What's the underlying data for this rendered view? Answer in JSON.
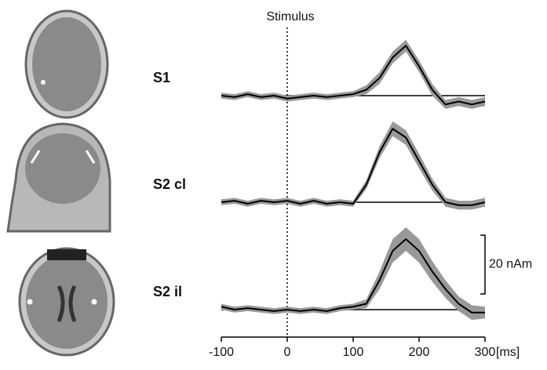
{
  "chart_data": [
    {
      "type": "line",
      "title": "S1",
      "annotation": "Stimulus",
      "annotation_x": 0,
      "x": [
        -100,
        -80,
        -60,
        -40,
        -20,
        0,
        20,
        40,
        60,
        80,
        100,
        120,
        140,
        160,
        180,
        200,
        220,
        240,
        260,
        280,
        300
      ],
      "series": [
        {
          "name": "S1",
          "color": "#000000",
          "band_color": "#999999",
          "values": [
            0,
            -0.5,
            0.5,
            -0.5,
            0,
            -1,
            -0.5,
            0,
            -0.5,
            0,
            0.5,
            2,
            6,
            13,
            17,
            10,
            2,
            -3,
            -2,
            -3,
            -2
          ],
          "error": [
            1,
            1,
            1,
            1,
            1,
            1,
            1,
            1,
            1,
            1,
            1,
            1.5,
            2,
            2,
            2,
            2,
            2,
            1.5,
            1.5,
            1.5,
            1.5
          ]
        }
      ],
      "xlim": [
        -100,
        300
      ],
      "ylim": [
        -6,
        28
      ]
    },
    {
      "type": "line",
      "title": "S2 cl",
      "x": [
        -100,
        -80,
        -60,
        -40,
        -20,
        0,
        20,
        40,
        60,
        80,
        100,
        120,
        140,
        160,
        180,
        200,
        220,
        240,
        260,
        280,
        300
      ],
      "series": [
        {
          "name": "S2 cl",
          "color": "#000000",
          "band_color": "#999999",
          "values": [
            0,
            0.5,
            -0.5,
            0.5,
            0,
            0.5,
            -0.5,
            0.5,
            -0.5,
            0,
            -0.5,
            6,
            17,
            25,
            22,
            14,
            6,
            0,
            -1,
            -1,
            0
          ],
          "error": [
            1,
            1,
            1,
            1,
            1,
            1,
            1,
            1,
            1,
            1,
            1,
            1.5,
            2,
            2.5,
            2.5,
            2.5,
            2,
            1.5,
            1.5,
            1.5,
            1.5
          ]
        }
      ],
      "xlim": [
        -100,
        300
      ],
      "ylim": [
        -6,
        28
      ]
    },
    {
      "type": "line",
      "title": "S2 il",
      "x": [
        -100,
        -80,
        -60,
        -40,
        -20,
        0,
        20,
        40,
        60,
        80,
        100,
        120,
        140,
        160,
        180,
        200,
        220,
        240,
        260,
        280,
        300
      ],
      "series": [
        {
          "name": "S2 il",
          "color": "#000000",
          "band_color": "#999999",
          "values": [
            1,
            0,
            0.5,
            0,
            -0.5,
            0,
            -0.5,
            0,
            -0.5,
            0.5,
            1,
            2,
            10,
            20,
            24,
            20,
            13,
            7,
            2,
            -1,
            -1
          ],
          "error": [
            1,
            1,
            1,
            1,
            1,
            1,
            1,
            1,
            1,
            1,
            1,
            1.5,
            3,
            4,
            4,
            4,
            3.5,
            3,
            2.5,
            2.5,
            2
          ]
        }
      ],
      "xlim": [
        -100,
        300
      ],
      "ylim": [
        -6,
        28
      ],
      "xticks": [
        -100,
        0,
        100,
        200,
        300
      ],
      "x_label": "[ms]",
      "scale_bar": {
        "value": 20,
        "label": "20 nAm"
      }
    }
  ]
}
